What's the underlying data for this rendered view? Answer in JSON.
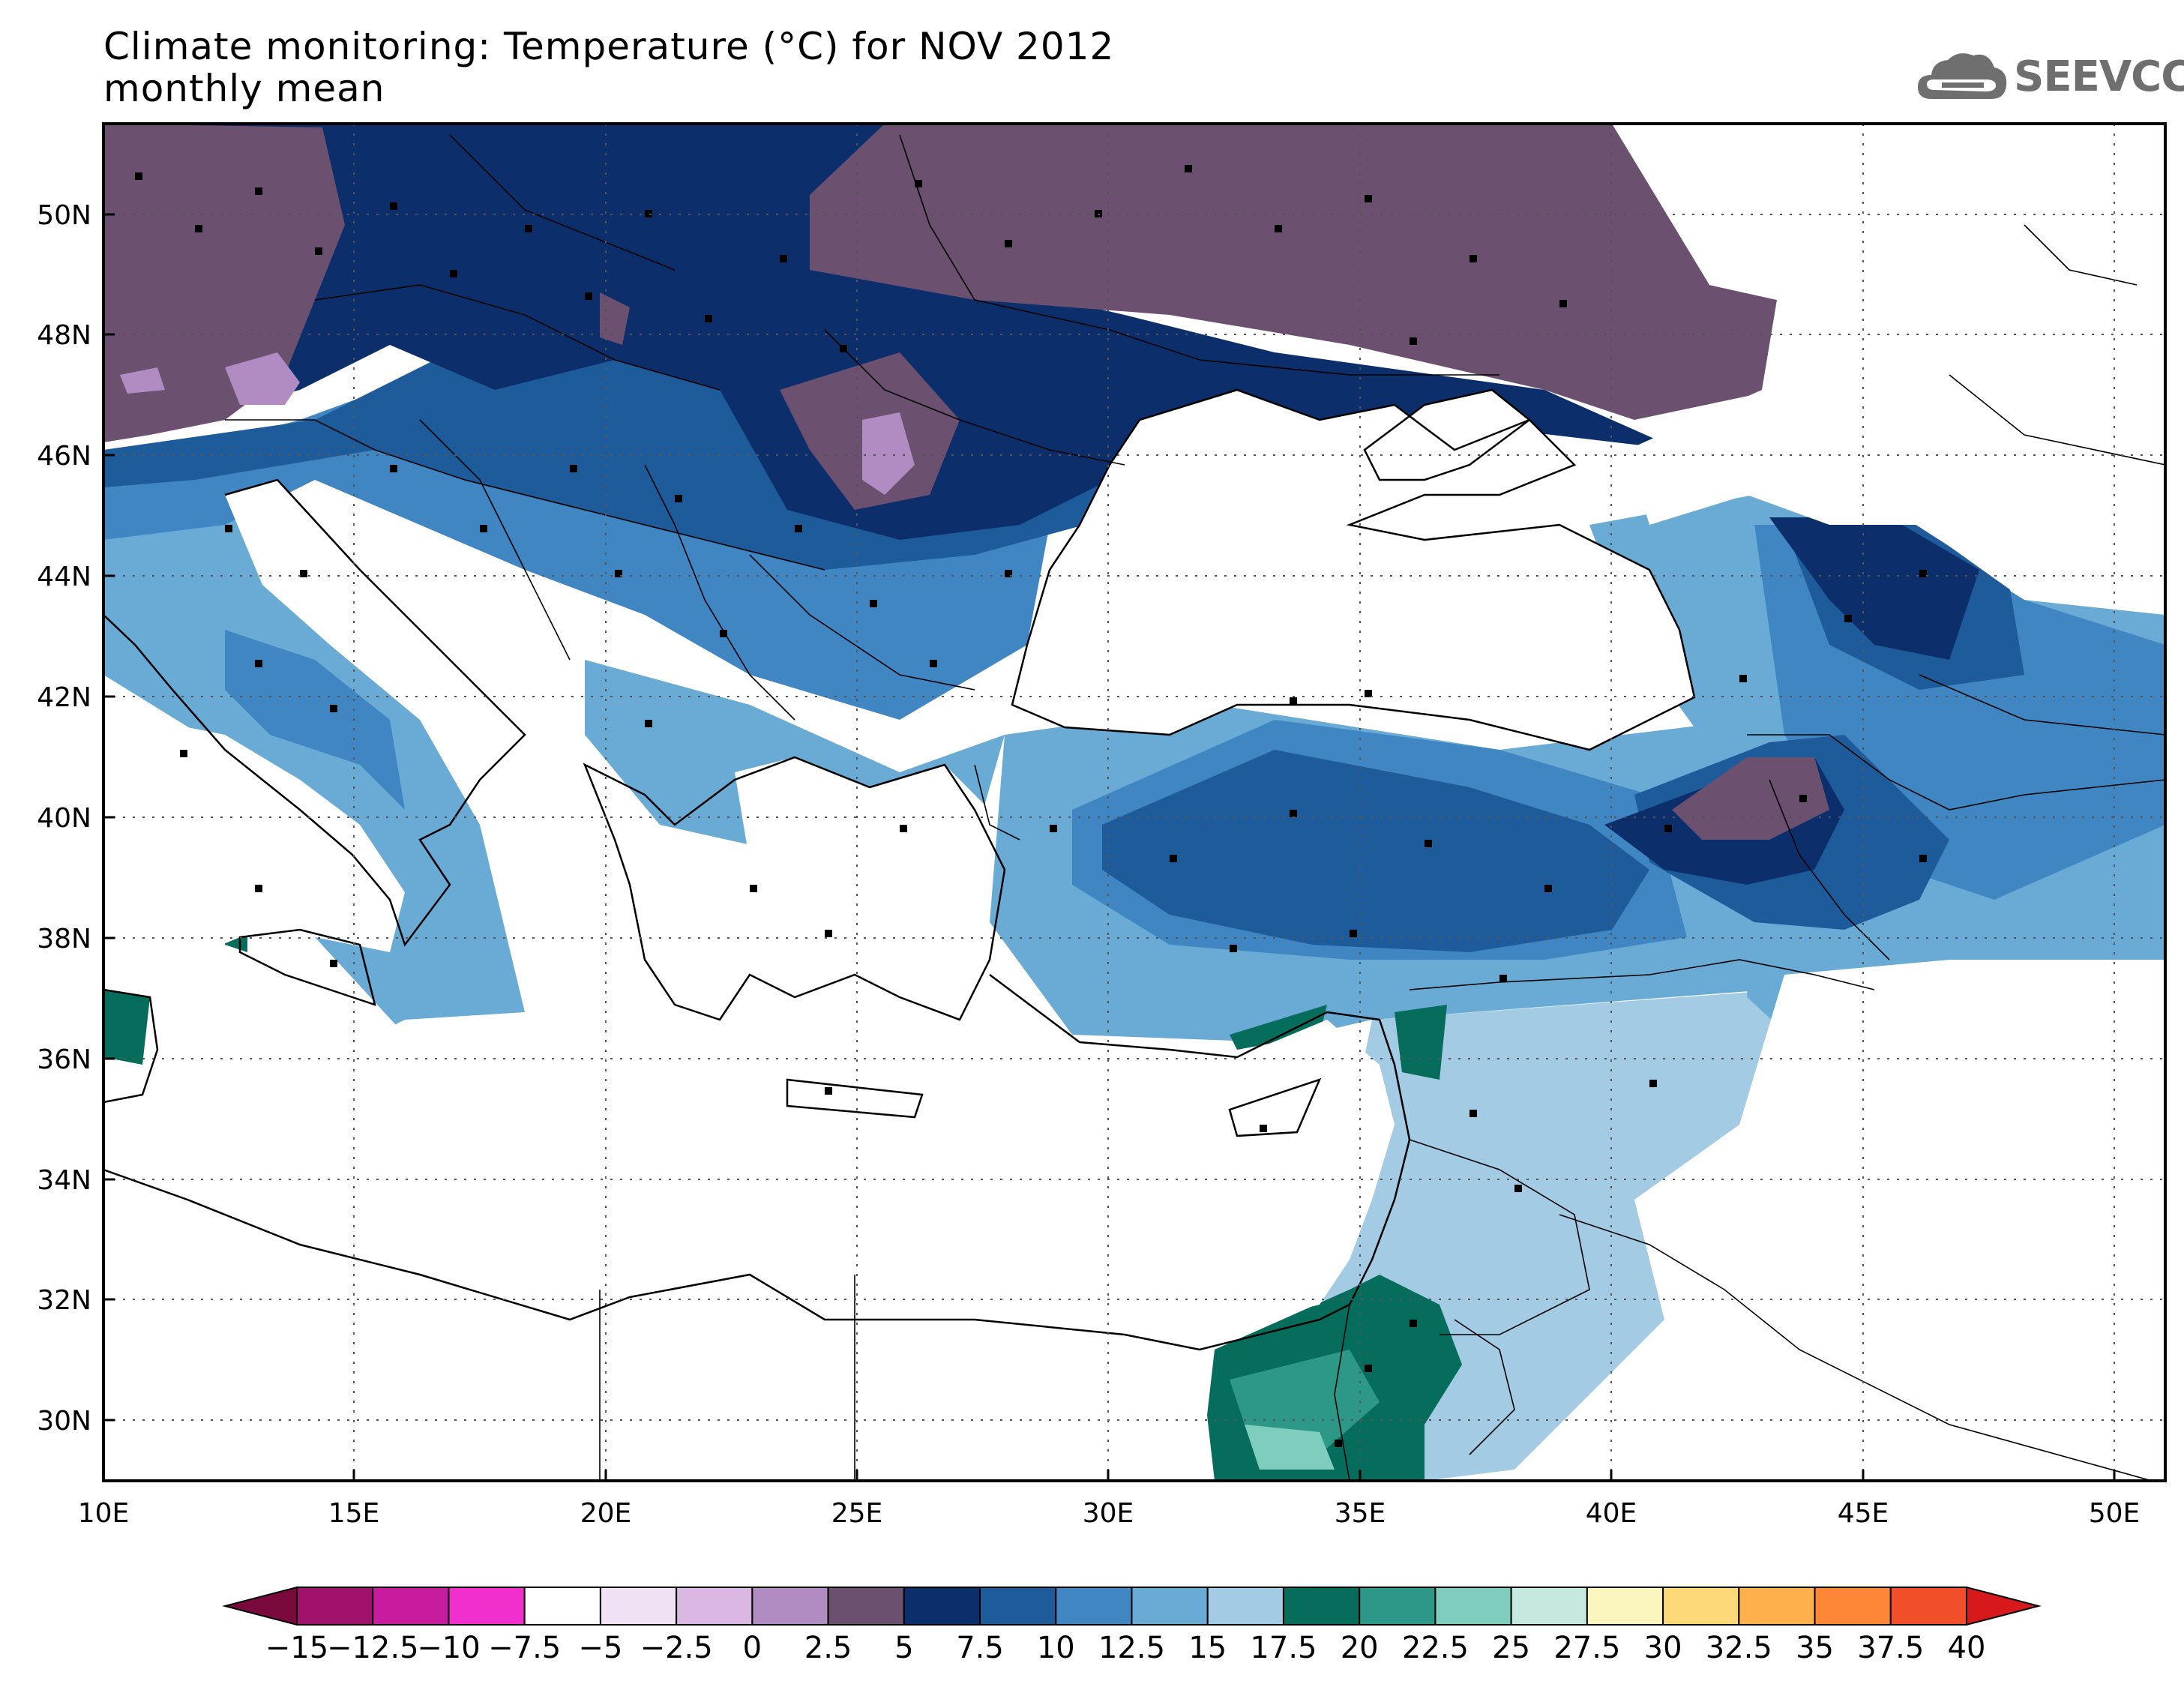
{
  "title": {
    "line1": "Climate monitoring: Temperature (°C) for NOV 2012",
    "line2": "monthly mean"
  },
  "logo": {
    "text": "SEEVCCC",
    "icon": "cloud-icon",
    "color": "#6f6f6f"
  },
  "map": {
    "lon_range": [
      10,
      51
    ],
    "lat_range": [
      29,
      51.5
    ],
    "lon_ticks": [
      "10E",
      "15E",
      "20E",
      "25E",
      "30E",
      "35E",
      "40E",
      "45E",
      "50E"
    ],
    "lat_ticks": [
      "30N",
      "32N",
      "34N",
      "36N",
      "38N",
      "40N",
      "42N",
      "44N",
      "46N",
      "48N",
      "50N"
    ],
    "gridlines": "dotted"
  },
  "colorbar": {
    "labels": [
      "−15",
      "−12.5",
      "−10",
      "−7.5",
      "−5",
      "−2.5",
      "0",
      "2.5",
      "5",
      "7.5",
      "10",
      "12.5",
      "15",
      "17.5",
      "20",
      "22.5",
      "25",
      "27.5",
      "30",
      "32.5",
      "35",
      "37.5",
      "40"
    ],
    "colors": [
      "#7a0a3c",
      "#a0116b",
      "#c71c9d",
      "#f02fcc",
      "#ffffff",
      "#f0e2f4",
      "#dbb8e3",
      "#b18cc2",
      "#6b5070",
      "#0c2f6c",
      "#1e5b9a",
      "#3f86c3",
      "#6aabd6",
      "#a3cbe4",
      "#066c5b",
      "#2e9888",
      "#7ecdbd",
      "#c5e9de",
      "#fbf6bd",
      "#fed97a",
      "#feb04d",
      "#fd8737",
      "#f14e2a",
      "#d7191c"
    ]
  }
}
